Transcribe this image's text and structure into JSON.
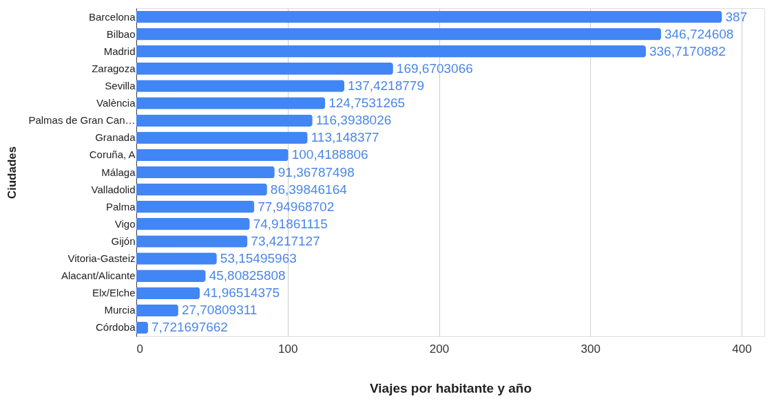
{
  "chart_data": {
    "type": "bar",
    "orientation": "horizontal",
    "xlabel": "Viajes por habitante y año",
    "ylabel": "Ciudades",
    "categories": [
      "Barcelona",
      "Bilbao",
      "Madrid",
      "Zaragoza",
      "Sevilla",
      "València",
      "Palmas de Gran Can…",
      "Granada",
      "Coruña, A",
      "Málaga",
      "Valladolid",
      "Palma",
      "Vigo",
      "Gijón",
      "Vitoria-Gasteiz",
      "Alacant/Alicante",
      "Elx/Elche",
      "Murcia",
      "Córdoba"
    ],
    "values": [
      387,
      346.724608,
      336.7170882,
      169.6703066,
      137.4218779,
      124.7531265,
      116.3938026,
      113.148377,
      100.4188806,
      91.36787498,
      86.39846164,
      77.94968702,
      74.91861115,
      73.4217127,
      53.15495963,
      45.80825808,
      41.96514375,
      27.70809311,
      7.721697662
    ],
    "value_labels": [
      "387",
      "346,724608",
      "336,7170882",
      "169,6703066",
      "137,4218779",
      "124,7531265",
      "116,3938026",
      "113,148377",
      "100,4188806",
      "91,36787498",
      "86,39846164",
      "77,94968702",
      "74,91861115",
      "73,4217127",
      "53,15495963",
      "45,80825808",
      "41,96514375",
      "27,70809311",
      "7,721697662"
    ],
    "color": "#4285f4",
    "xlim": [
      0,
      415
    ],
    "xticks": [
      0,
      100,
      200,
      300,
      400
    ],
    "grid": "x"
  }
}
